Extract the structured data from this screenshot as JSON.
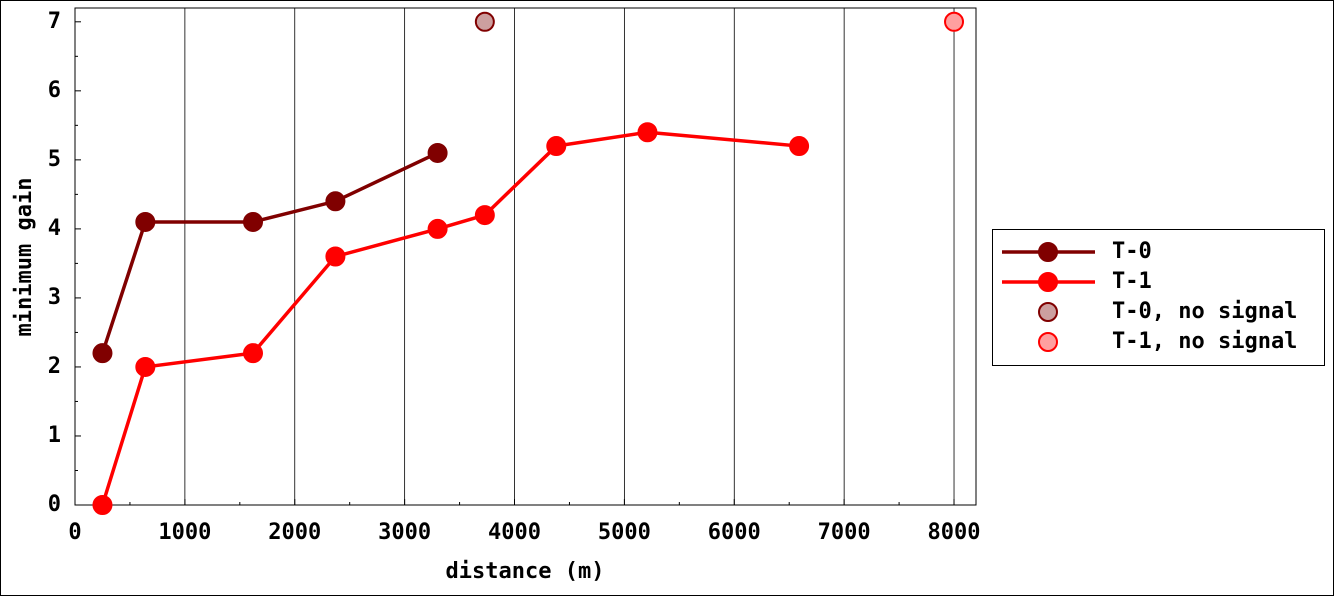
{
  "chart_data": {
    "type": "line",
    "xlabel": "distance (m)",
    "ylabel": "minimum gain",
    "xlim": [
      0,
      8200
    ],
    "ylim": [
      0,
      7.2
    ],
    "xticks": [
      0,
      1000,
      2000,
      3000,
      4000,
      5000,
      6000,
      7000,
      8000
    ],
    "yticks": [
      0,
      1,
      2,
      3,
      4,
      5,
      6,
      7
    ],
    "grid": "x",
    "legend": "outside right",
    "series": [
      {
        "name": "T-0",
        "color": "#800000",
        "marker_fill": "#800000",
        "mode": "lines+markers",
        "x": [
          250,
          640,
          1620,
          2370,
          3300
        ],
        "values": [
          2.2,
          4.1,
          4.1,
          4.4,
          5.1
        ]
      },
      {
        "name": "T-1",
        "color": "#ff0000",
        "marker_fill": "#ff0000",
        "mode": "lines+markers",
        "x": [
          250,
          640,
          1620,
          2370,
          3300,
          3730,
          4380,
          5210,
          6590
        ],
        "values": [
          0,
          2,
          2.2,
          3.6,
          4,
          4.2,
          5.2,
          5.4,
          5.2
        ]
      },
      {
        "name": "T-0, no signal",
        "color": "#800000",
        "marker_fill": "#cc9f9f",
        "mode": "markers",
        "x": [
          3730
        ],
        "values": [
          7
        ]
      },
      {
        "name": "T-1, no signal",
        "color": "#ff0000",
        "marker_fill": "#ff9f9f",
        "mode": "markers",
        "x": [
          8000
        ],
        "values": [
          7
        ]
      }
    ]
  }
}
